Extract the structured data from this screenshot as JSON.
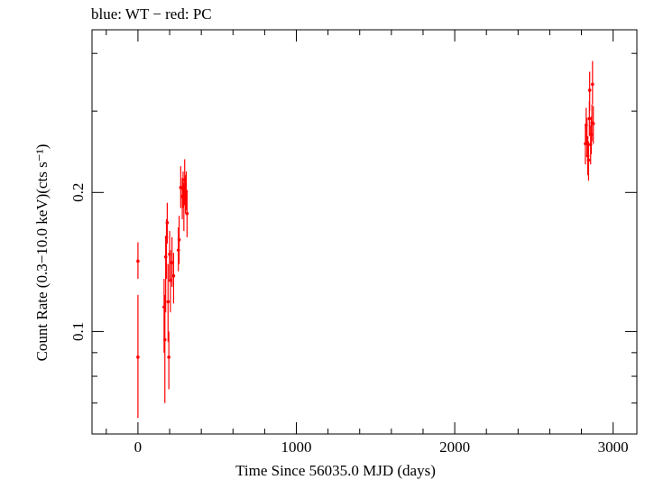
{
  "chart_data": {
    "type": "scatter",
    "title": "blue: WT − red: PC",
    "xlabel": "Time Since 56035.0 MJD (days)",
    "ylabel": "Count Rate (0.3−10.0 keV)(cts s⁻¹)",
    "xscale": "linear",
    "yscale": "log",
    "xlim": [
      -290,
      3150
    ],
    "ylim": [
      0.06,
      0.45
    ],
    "x_ticks": [
      {
        "value": 0,
        "label": "0"
      },
      {
        "value": 1000,
        "label": "1000"
      },
      {
        "value": 2000,
        "label": "2000"
      },
      {
        "value": 3000,
        "label": "3000"
      }
    ],
    "y_ticks": [
      {
        "value": 0.1,
        "label": "0.1"
      },
      {
        "value": 0.2,
        "label": "0.2"
      }
    ],
    "grid": false,
    "series": [
      {
        "name": "PC",
        "color": "#ff0000",
        "points": [
          {
            "x": 0,
            "y": 0.142,
            "ylo": 0.13,
            "yhi": 0.156
          },
          {
            "x": 0,
            "y": 0.088,
            "ylo": 0.065,
            "yhi": 0.12
          },
          {
            "x": 165,
            "y": 0.113,
            "ylo": 0.09,
            "yhi": 0.13
          },
          {
            "x": 170,
            "y": 0.096,
            "ylo": 0.07,
            "yhi": 0.12
          },
          {
            "x": 175,
            "y": 0.145,
            "ylo": 0.11,
            "yhi": 0.16
          },
          {
            "x": 180,
            "y": 0.16,
            "ylo": 0.13,
            "yhi": 0.175
          },
          {
            "x": 185,
            "y": 0.172,
            "ylo": 0.155,
            "yhi": 0.19
          },
          {
            "x": 190,
            "y": 0.116,
            "ylo": 0.095,
            "yhi": 0.14
          },
          {
            "x": 195,
            "y": 0.088,
            "ylo": 0.075,
            "yhi": 0.1
          },
          {
            "x": 200,
            "y": 0.147,
            "ylo": 0.128,
            "yhi": 0.165
          },
          {
            "x": 205,
            "y": 0.129,
            "ylo": 0.11,
            "yhi": 0.15
          },
          {
            "x": 215,
            "y": 0.141,
            "ylo": 0.125,
            "yhi": 0.16
          },
          {
            "x": 225,
            "y": 0.132,
            "ylo": 0.115,
            "yhi": 0.148
          },
          {
            "x": 255,
            "y": 0.15,
            "ylo": 0.135,
            "yhi": 0.168
          },
          {
            "x": 260,
            "y": 0.158,
            "ylo": 0.14,
            "yhi": 0.178
          },
          {
            "x": 270,
            "y": 0.205,
            "ylo": 0.185,
            "yhi": 0.228
          },
          {
            "x": 280,
            "y": 0.196,
            "ylo": 0.175,
            "yhi": 0.215
          },
          {
            "x": 285,
            "y": 0.203,
            "ylo": 0.185,
            "yhi": 0.222
          },
          {
            "x": 290,
            "y": 0.189,
            "ylo": 0.165,
            "yhi": 0.21
          },
          {
            "x": 295,
            "y": 0.213,
            "ylo": 0.19,
            "yhi": 0.236
          },
          {
            "x": 300,
            "y": 0.199,
            "ylo": 0.18,
            "yhi": 0.218
          },
          {
            "x": 305,
            "y": 0.201,
            "ylo": 0.183,
            "yhi": 0.222
          },
          {
            "x": 310,
            "y": 0.18,
            "ylo": 0.16,
            "yhi": 0.2
          },
          {
            "x": 2825,
            "y": 0.255,
            "ylo": 0.23,
            "yhi": 0.28
          },
          {
            "x": 2830,
            "y": 0.28,
            "ylo": 0.255,
            "yhi": 0.305
          },
          {
            "x": 2835,
            "y": 0.263,
            "ylo": 0.24,
            "yhi": 0.29
          },
          {
            "x": 2840,
            "y": 0.24,
            "ylo": 0.218,
            "yhi": 0.262
          },
          {
            "x": 2845,
            "y": 0.235,
            "ylo": 0.212,
            "yhi": 0.258
          },
          {
            "x": 2850,
            "y": 0.289,
            "ylo": 0.265,
            "yhi": 0.315
          },
          {
            "x": 2852,
            "y": 0.333,
            "ylo": 0.3,
            "yhi": 0.365
          },
          {
            "x": 2858,
            "y": 0.254,
            "ylo": 0.23,
            "yhi": 0.28
          },
          {
            "x": 2862,
            "y": 0.267,
            "ylo": 0.242,
            "yhi": 0.292
          },
          {
            "x": 2866,
            "y": 0.283,
            "ylo": 0.258,
            "yhi": 0.31
          },
          {
            "x": 2870,
            "y": 0.343,
            "ylo": 0.31,
            "yhi": 0.385
          },
          {
            "x": 2875,
            "y": 0.282,
            "ylo": 0.255,
            "yhi": 0.308
          }
        ]
      }
    ]
  }
}
